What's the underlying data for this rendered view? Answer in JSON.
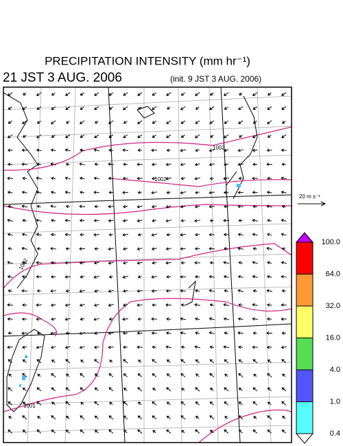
{
  "title": "PRECIPITATION INTENSITY (mm hr⁻¹)",
  "valid_time": "21 JST 3 AUG. 2006",
  "init_time": "(init. 9 JST 3 AUG. 2006)",
  "vector_scale": "20 m s⁻¹",
  "contour_labels": [
    "1002",
    "1002",
    "1002",
    "1001"
  ],
  "colorbar": {
    "labels": [
      "100.0",
      "64.0",
      "32.0",
      "16.0",
      "4.0",
      "1.0",
      "0.4"
    ],
    "colors": [
      "#c000ff",
      "#ff0000",
      "#ff9933",
      "#ffff66",
      "#55dd55",
      "#5555ff",
      "#55ffff",
      "#ffffff"
    ]
  }
}
